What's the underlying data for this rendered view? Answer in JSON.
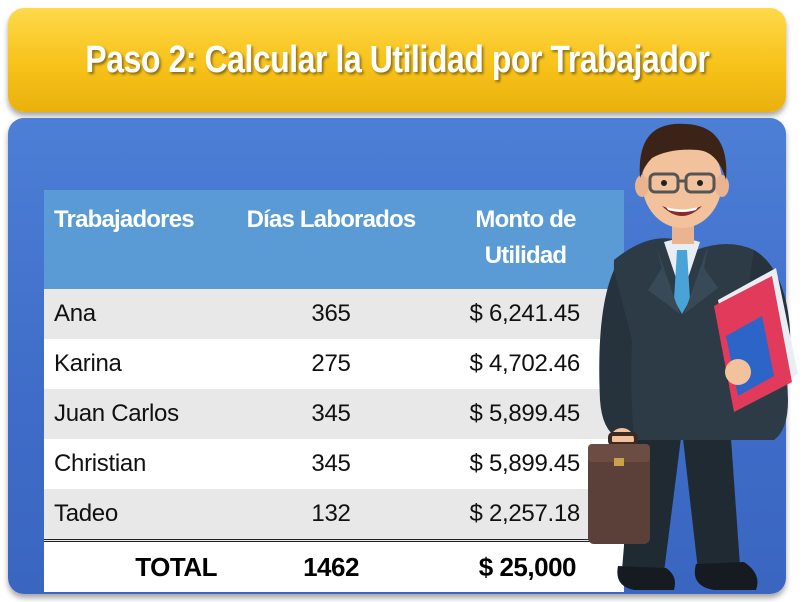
{
  "title": "Paso 2: Calcular la Utilidad por Trabajador",
  "table": {
    "headers": {
      "workers": "Trabajadores",
      "days": "Días Laborados",
      "amount_line1": "Monto de",
      "amount_line2": "Utilidad"
    },
    "rows": [
      {
        "name": "Ana",
        "days": "365",
        "amount": "$ 6,241.45"
      },
      {
        "name": "Karina",
        "days": "275",
        "amount": "$ 4,702.46"
      },
      {
        "name": "Juan Carlos",
        "days": "345",
        "amount": "$ 5,899.45"
      },
      {
        "name": "Christian",
        "days": "345",
        "amount": "$ 5,899.45"
      },
      {
        "name": "Tadeo",
        "days": "132",
        "amount": "$ 2,257.18"
      }
    ],
    "total": {
      "label": "TOTAL",
      "days": "1462",
      "amount": "$ 25,000"
    }
  },
  "colors": {
    "banner": "#f7c21a",
    "panel": "#3e6cc8",
    "table_header": "#5b9bd5",
    "row_stripe": "#e8e8e8"
  },
  "illustration": "businessman-with-glasses-folders-and-briefcase"
}
